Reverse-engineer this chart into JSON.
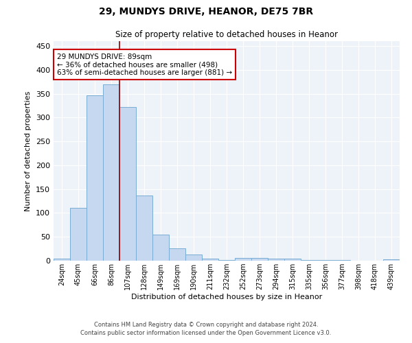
{
  "title1": "29, MUNDYS DRIVE, HEANOR, DE75 7BR",
  "title2": "Size of property relative to detached houses in Heanor",
  "xlabel": "Distribution of detached houses by size in Heanor",
  "ylabel": "Number of detached properties",
  "categories": [
    "24sqm",
    "45sqm",
    "66sqm",
    "86sqm",
    "107sqm",
    "128sqm",
    "149sqm",
    "169sqm",
    "190sqm",
    "211sqm",
    "232sqm",
    "252sqm",
    "273sqm",
    "294sqm",
    "315sqm",
    "335sqm",
    "356sqm",
    "377sqm",
    "398sqm",
    "418sqm",
    "439sqm"
  ],
  "values": [
    5,
    110,
    347,
    370,
    322,
    137,
    55,
    26,
    13,
    5,
    2,
    6,
    6,
    5,
    5,
    1,
    1,
    1,
    0,
    0,
    3
  ],
  "bar_color": "#c5d8f0",
  "bar_edge_color": "#7aadd4",
  "vline_x": 3.5,
  "vline_color": "#8b0000",
  "annotation_text": "29 MUNDYS DRIVE: 89sqm\n← 36% of detached houses are smaller (498)\n63% of semi-detached houses are larger (881) →",
  "annotation_box_color": "white",
  "annotation_box_edge": "#cc0000",
  "footer1": "Contains HM Land Registry data © Crown copyright and database right 2024.",
  "footer2": "Contains public sector information licensed under the Open Government Licence v3.0.",
  "bg_color": "#eef2f9",
  "ylim": [
    0,
    460
  ],
  "yticks": [
    0,
    50,
    100,
    150,
    200,
    250,
    300,
    350,
    400,
    450
  ]
}
